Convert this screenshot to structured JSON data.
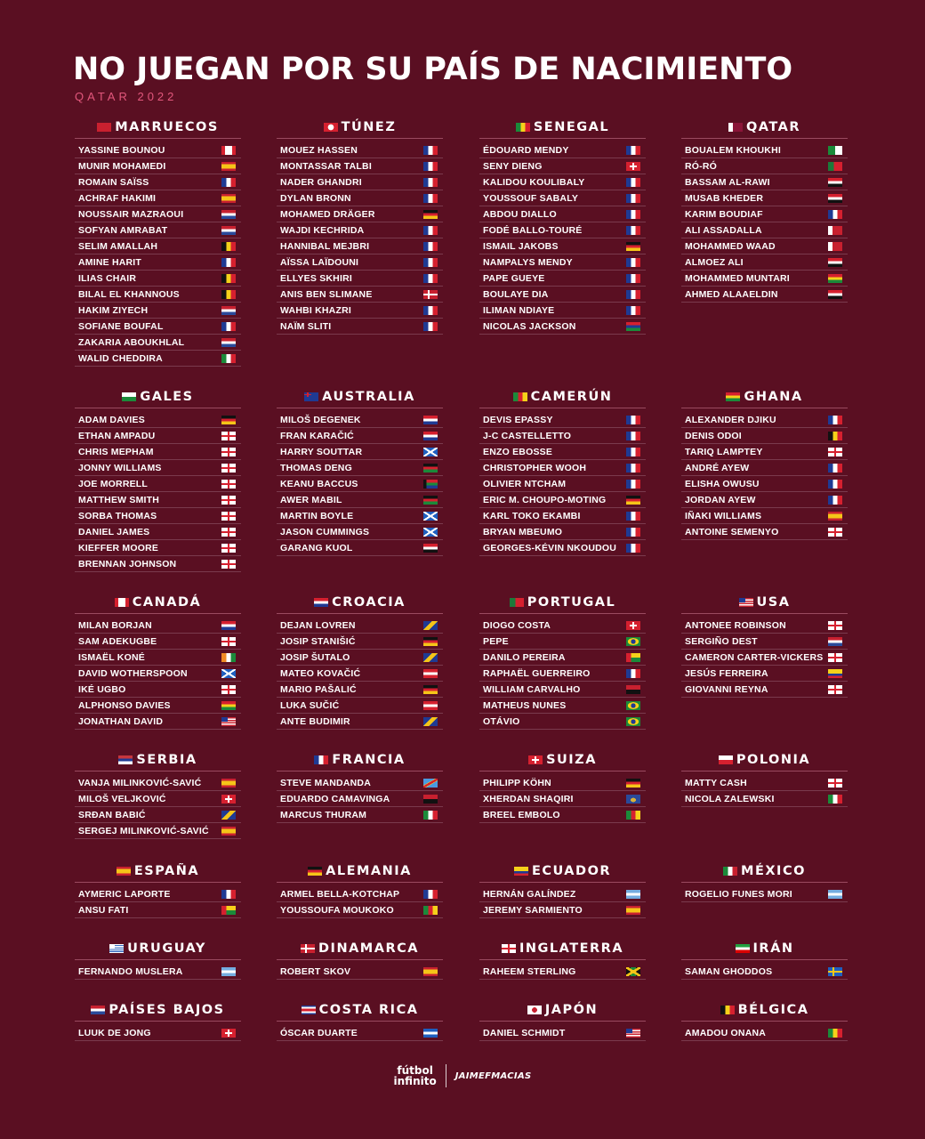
{
  "title": "NO JUEGAN POR SU PAÍS DE NACIMIENTO",
  "subtitle": "QATAR 2022",
  "colors": {
    "background": "#5a0f22",
    "accent": "#e2577c"
  },
  "teams": [
    {
      "name": "MARRUECOS",
      "flag": "morocco",
      "players": [
        {
          "name": "YASSINE BOUNOU",
          "flag": "canada"
        },
        {
          "name": "MUNIR MOHAMEDI",
          "flag": "spain"
        },
        {
          "name": "ROMAIN SAÏSS",
          "flag": "france"
        },
        {
          "name": "ACHRAF HAKIMI",
          "flag": "spain"
        },
        {
          "name": "NOUSSAIR MAZRAOUI",
          "flag": "netherlands"
        },
        {
          "name": "SOFYAN AMRABAT",
          "flag": "netherlands"
        },
        {
          "name": "SELIM AMALLAH",
          "flag": "belgium"
        },
        {
          "name": "AMINE HARIT",
          "flag": "france"
        },
        {
          "name": "ILIAS CHAIR",
          "flag": "belgium"
        },
        {
          "name": "BILAL EL KHANNOUS",
          "flag": "belgium"
        },
        {
          "name": "HAKIM ZIYECH",
          "flag": "netherlands"
        },
        {
          "name": "SOFIANE BOUFAL",
          "flag": "france"
        },
        {
          "name": "ZAKARIA ABOUKHLAL",
          "flag": "netherlands"
        },
        {
          "name": "WALID CHEDDIRA",
          "flag": "italy"
        }
      ]
    },
    {
      "name": "TÚNEZ",
      "flag": "tunisia",
      "players": [
        {
          "name": "MOUEZ HASSEN",
          "flag": "france"
        },
        {
          "name": "MONTASSAR TALBI",
          "flag": "france"
        },
        {
          "name": "NADER GHANDRI",
          "flag": "france"
        },
        {
          "name": "DYLAN BRONN",
          "flag": "france"
        },
        {
          "name": "MOHAMED DRÄGER",
          "flag": "germany"
        },
        {
          "name": "WAJDI KECHRIDA",
          "flag": "france"
        },
        {
          "name": "HANNIBAL MEJBRI",
          "flag": "france"
        },
        {
          "name": "AÏSSA LAÏDOUNI",
          "flag": "france"
        },
        {
          "name": "ELLYES SKHIRI",
          "flag": "france"
        },
        {
          "name": "ANIS BEN SLIMANE",
          "flag": "denmark"
        },
        {
          "name": "WAHBI KHAZRI",
          "flag": "france"
        },
        {
          "name": "NAÏM SLITI",
          "flag": "france"
        }
      ]
    },
    {
      "name": "SENEGAL",
      "flag": "senegal",
      "players": [
        {
          "name": "ÉDOUARD MENDY",
          "flag": "france"
        },
        {
          "name": "SENY DIENG",
          "flag": "switzerland"
        },
        {
          "name": "KALIDOU KOULIBALY",
          "flag": "france"
        },
        {
          "name": "YOUSSOUF SABALY",
          "flag": "france"
        },
        {
          "name": "ABDOU DIALLO",
          "flag": "france"
        },
        {
          "name": "FODÉ BALLO-TOURÉ",
          "flag": "france"
        },
        {
          "name": "ISMAIL JAKOBS",
          "flag": "germany"
        },
        {
          "name": "NAMPALYS MENDY",
          "flag": "france"
        },
        {
          "name": "PAPE GUEYE",
          "flag": "france"
        },
        {
          "name": "BOULAYE DIA",
          "flag": "france"
        },
        {
          "name": "ILIMAN NDIAYE",
          "flag": "france"
        },
        {
          "name": "NICOLAS JACKSON",
          "flag": "gambia"
        }
      ]
    },
    {
      "name": "QATAR",
      "flag": "qatar",
      "players": [
        {
          "name": "BOUALEM KHOUKHI",
          "flag": "algeria"
        },
        {
          "name": "RÓ-RÓ",
          "flag": "portugal"
        },
        {
          "name": "BASSAM AL-RAWI",
          "flag": "iraq"
        },
        {
          "name": "MUSAB KHEDER",
          "flag": "sudan"
        },
        {
          "name": "KARIM BOUDIAF",
          "flag": "france"
        },
        {
          "name": "ALI ASSADALLA",
          "flag": "bahrain"
        },
        {
          "name": "MOHAMMED WAAD",
          "flag": "bahrain"
        },
        {
          "name": "ALMOEZ ALI",
          "flag": "sudan"
        },
        {
          "name": "MOHAMMED MUNTARI",
          "flag": "ghana"
        },
        {
          "name": "AHMED ALAAELDIN",
          "flag": "egypt"
        }
      ]
    },
    {
      "name": "GALES",
      "flag": "wales",
      "players": [
        {
          "name": "ADAM DAVIES",
          "flag": "germany"
        },
        {
          "name": "ETHAN AMPADU",
          "flag": "england"
        },
        {
          "name": "CHRIS MEPHAM",
          "flag": "england"
        },
        {
          "name": "JONNY WILLIAMS",
          "flag": "england"
        },
        {
          "name": "JOE MORRELL",
          "flag": "england"
        },
        {
          "name": "MATTHEW SMITH",
          "flag": "england"
        },
        {
          "name": "SORBA THOMAS",
          "flag": "england"
        },
        {
          "name": "DANIEL JAMES",
          "flag": "england"
        },
        {
          "name": "KIEFFER MOORE",
          "flag": "england"
        },
        {
          "name": "BRENNAN JOHNSON",
          "flag": "england"
        }
      ]
    },
    {
      "name": "AUSTRALIA",
      "flag": "australia",
      "players": [
        {
          "name": "MILOŠ DEGENEK",
          "flag": "croatia"
        },
        {
          "name": "FRAN KARAČIĆ",
          "flag": "croatia"
        },
        {
          "name": "HARRY SOUTTAR",
          "flag": "scotland"
        },
        {
          "name": "THOMAS DENG",
          "flag": "kenya"
        },
        {
          "name": "KEANU BACCUS",
          "flag": "southafrica"
        },
        {
          "name": "AWER MABIL",
          "flag": "kenya"
        },
        {
          "name": "MARTIN BOYLE",
          "flag": "scotland"
        },
        {
          "name": "JASON CUMMINGS",
          "flag": "scotland"
        },
        {
          "name": "GARANG KUOL",
          "flag": "egypt"
        }
      ]
    },
    {
      "name": "CAMERÚN",
      "flag": "cameroon",
      "players": [
        {
          "name": "DEVIS EPASSY",
          "flag": "france"
        },
        {
          "name": "J-C CASTELLETTO",
          "flag": "france"
        },
        {
          "name": "ENZO EBOSSE",
          "flag": "france"
        },
        {
          "name": "CHRISTOPHER WOOH",
          "flag": "france"
        },
        {
          "name": "OLIVIER NTCHAM",
          "flag": "france"
        },
        {
          "name": "ERIC M. CHOUPO-MOTING",
          "flag": "germany"
        },
        {
          "name": "KARL TOKO EKAMBI",
          "flag": "france"
        },
        {
          "name": "BRYAN MBEUMO",
          "flag": "france"
        },
        {
          "name": "GEORGES-KÉVIN NKOUDOU",
          "flag": "france"
        }
      ]
    },
    {
      "name": "GHANA",
      "flag": "ghana",
      "players": [
        {
          "name": "ALEXANDER DJIKU",
          "flag": "france"
        },
        {
          "name": "DENIS ODOI",
          "flag": "belgium"
        },
        {
          "name": "TARIQ LAMPTEY",
          "flag": "england"
        },
        {
          "name": "ANDRÉ AYEW",
          "flag": "france"
        },
        {
          "name": "ELISHA OWUSU",
          "flag": "france"
        },
        {
          "name": "JORDAN AYEW",
          "flag": "france"
        },
        {
          "name": "IÑAKI WILLIAMS",
          "flag": "spain"
        },
        {
          "name": "ANTOINE SEMENYO",
          "flag": "england"
        }
      ]
    },
    {
      "name": "CANADÁ",
      "flag": "canada",
      "players": [
        {
          "name": "MILAN BORJAN",
          "flag": "croatia"
        },
        {
          "name": "SAM ADEKUGBE",
          "flag": "england"
        },
        {
          "name": "ISMAËL KONÉ",
          "flag": "ivorycoast"
        },
        {
          "name": "DAVID WOTHERSPOON",
          "flag": "scotland"
        },
        {
          "name": "IKÉ UGBO",
          "flag": "england"
        },
        {
          "name": "ALPHONSO DAVIES",
          "flag": "ghana"
        },
        {
          "name": "JONATHAN DAVID",
          "flag": "usa"
        }
      ]
    },
    {
      "name": "CROACIA",
      "flag": "croatia",
      "players": [
        {
          "name": "DEJAN LOVREN",
          "flag": "bosnia"
        },
        {
          "name": "JOSIP STANIŠIĆ",
          "flag": "germany"
        },
        {
          "name": "JOSIP ŠUTALO",
          "flag": "bosnia"
        },
        {
          "name": "MATEO KOVAČIĆ",
          "flag": "austria"
        },
        {
          "name": "MARIO PAŠALIĆ",
          "flag": "germany"
        },
        {
          "name": "LUKA SUČIĆ",
          "flag": "austria"
        },
        {
          "name": "ANTE BUDIMIR",
          "flag": "bosnia"
        }
      ]
    },
    {
      "name": "PORTUGAL",
      "flag": "portugal",
      "players": [
        {
          "name": "DIOGO COSTA",
          "flag": "switzerland"
        },
        {
          "name": "PEPE",
          "flag": "brazil"
        },
        {
          "name": "DANILO PEREIRA",
          "flag": "guineabissau"
        },
        {
          "name": "RAPHAËL GUERREIRO",
          "flag": "france"
        },
        {
          "name": "WILLIAM CARVALHO",
          "flag": "angola"
        },
        {
          "name": "MATHEUS NUNES",
          "flag": "brazil"
        },
        {
          "name": "OTÁVIO",
          "flag": "brazil"
        }
      ]
    },
    {
      "name": "USA",
      "flag": "usa",
      "players": [
        {
          "name": "ANTONEE ROBINSON",
          "flag": "england"
        },
        {
          "name": "SERGIÑO DEST",
          "flag": "netherlands"
        },
        {
          "name": "CAMERON CARTER-VICKERS",
          "flag": "england"
        },
        {
          "name": "JESÚS FERREIRA",
          "flag": "colombia"
        },
        {
          "name": "GIOVANNI REYNA",
          "flag": "england"
        }
      ]
    },
    {
      "name": "SERBIA",
      "flag": "serbia",
      "players": [
        {
          "name": "VANJA MILINKOVIĆ-SAVIĆ",
          "flag": "spain"
        },
        {
          "name": "MILOŠ VELJKOVIĆ",
          "flag": "switzerland"
        },
        {
          "name": "SRĐAN BABIĆ",
          "flag": "bosnia"
        },
        {
          "name": "SERGEJ MILINKOVIĆ-SAVIĆ",
          "flag": "spain"
        }
      ]
    },
    {
      "name": "FRANCIA",
      "flag": "france",
      "players": [
        {
          "name": "STEVE MANDANDA",
          "flag": "drcongo"
        },
        {
          "name": "EDUARDO CAMAVINGA",
          "flag": "angola"
        },
        {
          "name": "MARCUS THURAM",
          "flag": "italy"
        }
      ]
    },
    {
      "name": "SUIZA",
      "flag": "switzerland",
      "players": [
        {
          "name": "PHILIPP KÖHN",
          "flag": "germany"
        },
        {
          "name": "XHERDAN SHAQIRI",
          "flag": "kosovo"
        },
        {
          "name": "BREEL EMBOLO",
          "flag": "cameroon"
        }
      ]
    },
    {
      "name": "POLONIA",
      "flag": "poland",
      "players": [
        {
          "name": "MATTY CASH",
          "flag": "england"
        },
        {
          "name": "NICOLA ZALEWSKI",
          "flag": "italy"
        }
      ]
    },
    {
      "name": "ESPAÑA",
      "flag": "spain",
      "players": [
        {
          "name": "AYMERIC LAPORTE",
          "flag": "france"
        },
        {
          "name": "ANSU FATI",
          "flag": "guineabissau"
        }
      ]
    },
    {
      "name": "ALEMANIA",
      "flag": "germany",
      "players": [
        {
          "name": "ARMEL BELLA-KOTCHAP",
          "flag": "france"
        },
        {
          "name": "YOUSSOUFA MOUKOKO",
          "flag": "cameroon"
        }
      ]
    },
    {
      "name": "ECUADOR",
      "flag": "ecuador",
      "players": [
        {
          "name": "HERNÁN GALÍNDEZ",
          "flag": "argentina"
        },
        {
          "name": "JEREMY SARMIENTO",
          "flag": "spain"
        }
      ]
    },
    {
      "name": "MÉXICO",
      "flag": "mexico",
      "players": [
        {
          "name": "ROGELIO FUNES MORI",
          "flag": "argentina"
        }
      ]
    },
    {
      "name": "URUGUAY",
      "flag": "uruguay",
      "players": [
        {
          "name": "FERNANDO MUSLERA",
          "flag": "argentina"
        }
      ]
    },
    {
      "name": "DINAMARCA",
      "flag": "denmark",
      "players": [
        {
          "name": "ROBERT SKOV",
          "flag": "spain"
        }
      ]
    },
    {
      "name": "INGLATERRA",
      "flag": "england",
      "players": [
        {
          "name": "RAHEEM STERLING",
          "flag": "jamaica"
        }
      ]
    },
    {
      "name": "IRÁN",
      "flag": "iran",
      "players": [
        {
          "name": "SAMAN GHODDOS",
          "flag": "sweden"
        }
      ]
    },
    {
      "name": "PAÍSES BAJOS",
      "flag": "netherlands",
      "players": [
        {
          "name": "LUUK DE JONG",
          "flag": "switzerland"
        }
      ]
    },
    {
      "name": "COSTA RICA",
      "flag": "costarica",
      "players": [
        {
          "name": "ÓSCAR DUARTE",
          "flag": "nicaragua"
        }
      ]
    },
    {
      "name": "JAPÓN",
      "flag": "japan",
      "players": [
        {
          "name": "DANIEL SCHMIDT",
          "flag": "usa"
        }
      ]
    },
    {
      "name": "BÉLGICA",
      "flag": "belgium",
      "players": [
        {
          "name": "AMADOU ONANA",
          "flag": "senegal"
        }
      ]
    }
  ],
  "footer": {
    "logo_line1": "fútbol",
    "logo_line2": "infinito",
    "handle": "JAIMEFMACIAS"
  }
}
